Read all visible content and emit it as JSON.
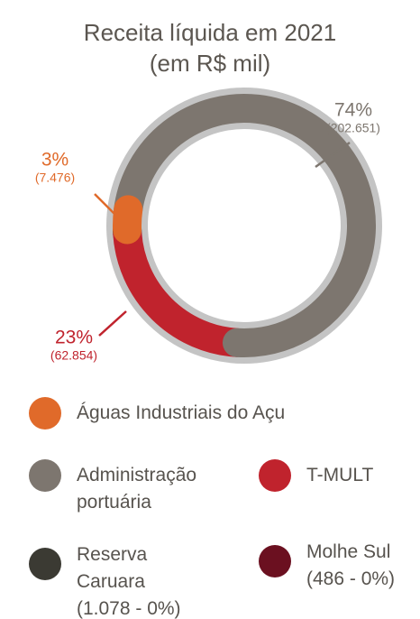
{
  "chart_data": {
    "type": "donut",
    "title": [
      "Receita líquida em 2021",
      "(em R$ mil)"
    ],
    "categories": [
      "Águas Industriais do Açu",
      "Administração portuária",
      "T-MULT",
      "Reserva Caruara",
      "Molhe Sul"
    ],
    "values": [
      7476,
      202651,
      62854,
      1078,
      486
    ],
    "value_labels": [
      "(7.476)",
      "(202.651)",
      "(62.854)",
      "(1.078 - 0%)",
      "(486 - 0%)"
    ],
    "shares": [
      3,
      74,
      23,
      0,
      0
    ],
    "share_labels": [
      "3%",
      "74%",
      "23%",
      null,
      null
    ],
    "colors": [
      "#e06a2a",
      "#7d766f",
      "#c0232d",
      "#3b3a33",
      "#6b1020"
    ],
    "legend": "bottom"
  }
}
